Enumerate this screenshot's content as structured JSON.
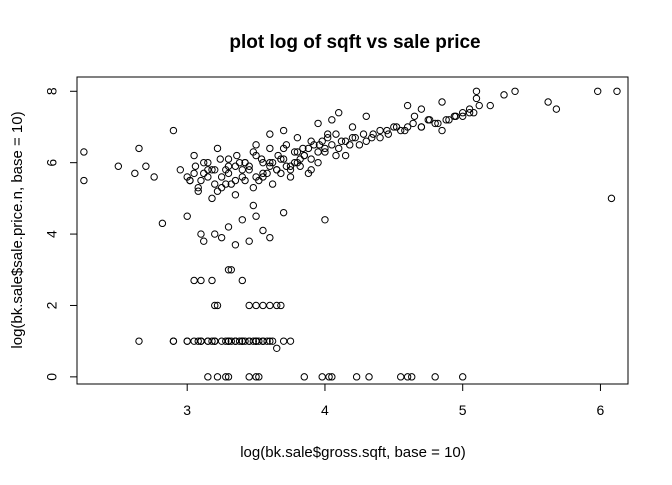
{
  "chart_data": {
    "type": "scatter",
    "title": "plot log of sqft vs sale price",
    "xlabel": "log(bk.sale$gross.sqft, base = 10)",
    "ylabel": "log(bk.sale$sale.price.n, base = 10)",
    "xlim": [
      2.2,
      6.2
    ],
    "ylim": [
      -0.2,
      8.4
    ],
    "x_ticks": [
      3,
      4,
      5,
      6
    ],
    "y_ticks": [
      0,
      2,
      4,
      6,
      8
    ],
    "series": [
      {
        "name": "points",
        "x": [
          2.25,
          2.25,
          2.5,
          2.62,
          2.65,
          2.7,
          2.76,
          2.82,
          2.9,
          2.95,
          3.0,
          3.02,
          3.05,
          3.08,
          3.1,
          3.12,
          3.15,
          3.18,
          3.2,
          3.22,
          3.25,
          3.28,
          3.3,
          3.32,
          3.35,
          3.38,
          3.4,
          3.42,
          3.45,
          3.48,
          3.5,
          3.52,
          3.55,
          3.58,
          3.6,
          3.62,
          3.65,
          3.68,
          3.7,
          3.72,
          3.75,
          3.78,
          3.8,
          3.82,
          3.85,
          3.88,
          3.9,
          3.92,
          3.95,
          3.98,
          4.0,
          4.02,
          4.05,
          4.08,
          4.1,
          4.12,
          4.15,
          4.18,
          4.2,
          4.25,
          4.3,
          4.35,
          4.4,
          4.45,
          4.5,
          4.55,
          4.6,
          4.65,
          4.7,
          4.75,
          4.8,
          4.85,
          4.9,
          4.95,
          5.0,
          5.05,
          5.08,
          5.1,
          5.2,
          5.3,
          5.38,
          5.62,
          5.68,
          5.98,
          6.08,
          6.12,
          3.05,
          3.1,
          3.18,
          3.2,
          3.22,
          3.3,
          3.32,
          3.4,
          3.45,
          3.5,
          3.55,
          3.6,
          3.65,
          3.68,
          2.9,
          3.0,
          3.1,
          3.15,
          3.2,
          3.3,
          3.35,
          3.4,
          3.45,
          3.5,
          3.55,
          3.1,
          3.2,
          3.3,
          3.35,
          3.4,
          3.5,
          3.55,
          2.65,
          2.9,
          3.0,
          3.05,
          3.08,
          3.1,
          3.15,
          3.18,
          3.2,
          3.25,
          3.28,
          3.3,
          3.32,
          3.35,
          3.38,
          3.4,
          3.42,
          3.45,
          3.48,
          3.5,
          3.52,
          3.55,
          3.58,
          3.6,
          3.62,
          3.65,
          3.7,
          3.75,
          3.15,
          3.22,
          3.28,
          3.3,
          3.45,
          3.5,
          3.52,
          3.85,
          3.98,
          4.03,
          4.05,
          4.23,
          4.32,
          4.55,
          4.6,
          4.63,
          4.8,
          5.0,
          3.12,
          3.2,
          3.25,
          3.3,
          3.35,
          3.4,
          3.45,
          3.5,
          3.55,
          3.6,
          3.7,
          4.0,
          3.02,
          3.08,
          3.15,
          3.22,
          3.28,
          3.35,
          3.42,
          3.48,
          3.55,
          3.62,
          3.68,
          3.75,
          3.82,
          3.88,
          3.95,
          3.0,
          3.05,
          3.1,
          3.15,
          3.2,
          3.25,
          3.3,
          3.35,
          3.4,
          3.45,
          3.5,
          3.55,
          3.6,
          3.65,
          3.7,
          3.75,
          3.8,
          3.85,
          3.9,
          4.0,
          3.06,
          3.12,
          3.18,
          3.24,
          3.3,
          3.36,
          3.42,
          3.48,
          3.54,
          3.6,
          3.66,
          3.72,
          3.78,
          3.84,
          3.9,
          3.96,
          4.02,
          4.08,
          4.15,
          4.22,
          4.28,
          4.34,
          4.4,
          4.46,
          4.52,
          4.58,
          4.64,
          4.7,
          4.76,
          4.82,
          4.88,
          4.94,
          5.0,
          5.05,
          5.12,
          3.5,
          3.6,
          3.7,
          3.8,
          3.95,
          4.05,
          4.1,
          4.2,
          4.3,
          4.6,
          4.7,
          4.85,
          5.1
        ],
        "y": [
          6.3,
          5.5,
          5.9,
          5.7,
          6.4,
          5.9,
          5.6,
          4.3,
          6.9,
          5.8,
          4.5,
          5.5,
          6.2,
          5.2,
          4.0,
          5.7,
          6.0,
          5.0,
          5.8,
          6.4,
          5.3,
          5.8,
          6.1,
          5.4,
          5.9,
          6.0,
          5.6,
          6.0,
          5.8,
          4.8,
          6.2,
          5.5,
          6.0,
          5.7,
          5.9,
          6.0,
          5.8,
          6.1,
          6.4,
          5.9,
          5.6,
          6.0,
          6.3,
          6.1,
          6.2,
          6.4,
          5.8,
          6.5,
          6.3,
          6.6,
          6.4,
          6.8,
          6.5,
          6.2,
          6.4,
          6.6,
          6.2,
          6.5,
          6.7,
          6.5,
          6.6,
          6.8,
          6.7,
          6.9,
          7.0,
          6.9,
          7.0,
          7.3,
          7.0,
          7.2,
          7.1,
          6.9,
          7.2,
          7.3,
          7.3,
          7.4,
          7.4,
          8.0,
          7.6,
          7.9,
          8.0,
          7.7,
          7.5,
          8.0,
          5.0,
          8.0,
          2.7,
          2.7,
          2.7,
          2.0,
          2.0,
          3.0,
          3.0,
          2.7,
          2.0,
          2.0,
          2.0,
          2.0,
          2.0,
          2.0,
          1.0,
          1.0,
          1.0,
          1.0,
          1.0,
          1.0,
          1.0,
          1.0,
          1.0,
          1.0,
          1.0,
          1.0,
          1.0,
          1.0,
          1.0,
          1.0,
          1.0,
          1.0,
          1.0,
          1.0,
          1.0,
          1.0,
          1.0,
          1.0,
          1.0,
          1.0,
          1.0,
          1.0,
          1.0,
          1.0,
          1.0,
          1.0,
          1.0,
          1.0,
          1.0,
          1.0,
          1.0,
          1.0,
          1.0,
          1.0,
          1.0,
          1.0,
          1.0,
          0.8,
          1.0,
          1.0,
          0,
          0,
          0,
          0,
          0,
          0,
          0,
          0,
          0,
          0,
          0,
          0,
          0,
          0,
          0,
          0,
          0,
          0,
          3.8,
          4.0,
          3.9,
          4.2,
          3.7,
          4.4,
          3.8,
          4.5,
          4.1,
          3.9,
          4.6,
          4.4,
          5.5,
          5.3,
          5.6,
          5.2,
          5.4,
          5.1,
          5.5,
          5.3,
          5.6,
          5.4,
          5.7,
          5.8,
          5.9,
          5.7,
          6.0,
          5.6,
          5.7,
          5.5,
          5.8,
          5.4,
          5.6,
          5.7,
          5.5,
          5.8,
          5.9,
          5.6,
          5.7,
          6.0,
          5.8,
          6.1,
          5.9,
          6.0,
          6.2,
          6.1,
          6.3,
          5.9,
          6.0,
          5.8,
          6.1,
          5.9,
          6.2,
          6.0,
          6.3,
          6.1,
          6.4,
          6.2,
          6.5,
          6.3,
          6.4,
          6.6,
          6.5,
          6.7,
          6.8,
          6.6,
          6.7,
          6.8,
          6.7,
          6.9,
          6.8,
          7.0,
          6.9,
          7.1,
          7.0,
          7.2,
          7.1,
          7.2,
          7.3,
          7.4,
          7.5,
          7.6,
          6.5,
          6.8,
          6.9,
          6.7,
          7.1,
          7.2,
          7.4,
          7.0,
          7.3,
          7.6,
          7.5,
          7.7,
          7.8
        ]
      }
    ]
  }
}
